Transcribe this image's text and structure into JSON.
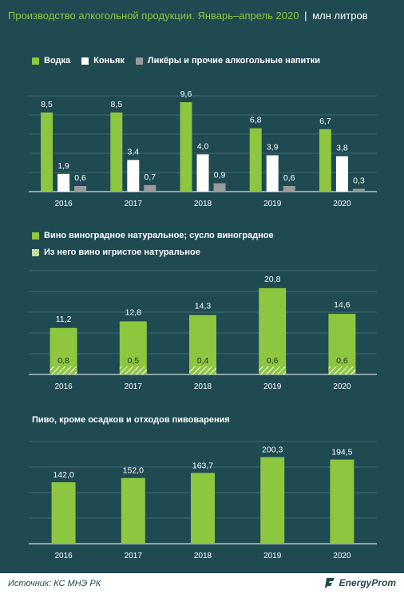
{
  "header": {
    "title": "Производство алкогольной продукции. Январь–апрель 2020",
    "separator": "|",
    "unit": "млн литров"
  },
  "colors": {
    "green": "#8dc63f",
    "white": "#ffffff",
    "grey": "#9a9a9a",
    "background": "#1f4a52",
    "grid": "#3c6a72"
  },
  "footer": {
    "source": "Источник: КС МНЭ РК",
    "logo_text": "EnergyProm"
  },
  "chart_data": [
    {
      "type": "bar",
      "categories": [
        "2016",
        "2017",
        "2018",
        "2019",
        "2020"
      ],
      "series": [
        {
          "name": "Водка",
          "values": [
            8.5,
            8.5,
            9.6,
            6.8,
            6.7
          ],
          "labels": [
            "8,5",
            "8,5",
            "9,6",
            "6,8",
            "6,7"
          ]
        },
        {
          "name": "Коньяк",
          "values": [
            1.9,
            3.4,
            4.0,
            3.9,
            3.8
          ],
          "labels": [
            "1,9",
            "3,4",
            "4,0",
            "3,9",
            "3,8"
          ]
        },
        {
          "name": "Ликёры и прочие алкогольные напитки",
          "values": [
            0.6,
            0.7,
            0.9,
            0.6,
            0.3
          ],
          "labels": [
            "0,6",
            "0,7",
            "0,9",
            "0,6",
            "0,3"
          ]
        }
      ],
      "ylim": [
        0,
        12
      ],
      "grid": true,
      "legend": "top-left"
    },
    {
      "type": "bar",
      "categories": [
        "2016",
        "2017",
        "2018",
        "2019",
        "2020"
      ],
      "series": [
        {
          "name": "Вино виноградное натуральное; сусло виноградное",
          "values": [
            11.2,
            12.8,
            14.3,
            20.8,
            14.6
          ],
          "labels": [
            "11,2",
            "12,8",
            "14,3",
            "20,8",
            "14,6"
          ]
        },
        {
          "name": "Из него вино игристое натуральное",
          "values": [
            0.8,
            0.5,
            0.4,
            0.6,
            0.6
          ],
          "labels": [
            "0,8",
            "0,5",
            "0,4",
            "0,6",
            "0,6"
          ]
        }
      ],
      "ylim": [
        0,
        25
      ],
      "grid": true,
      "legend": "top-left"
    },
    {
      "type": "bar",
      "title": "Пиво, кроме осадков и отходов пивоварения",
      "categories": [
        "2016",
        "2017",
        "2018",
        "2019",
        "2020"
      ],
      "series": [
        {
          "values": [
            142.0,
            152.0,
            163.7,
            200.3,
            194.5
          ],
          "labels": [
            "142,0",
            "152,0",
            "163,7",
            "200,3",
            "194,5"
          ]
        }
      ],
      "ylim": [
        0,
        240
      ],
      "grid": true
    }
  ]
}
